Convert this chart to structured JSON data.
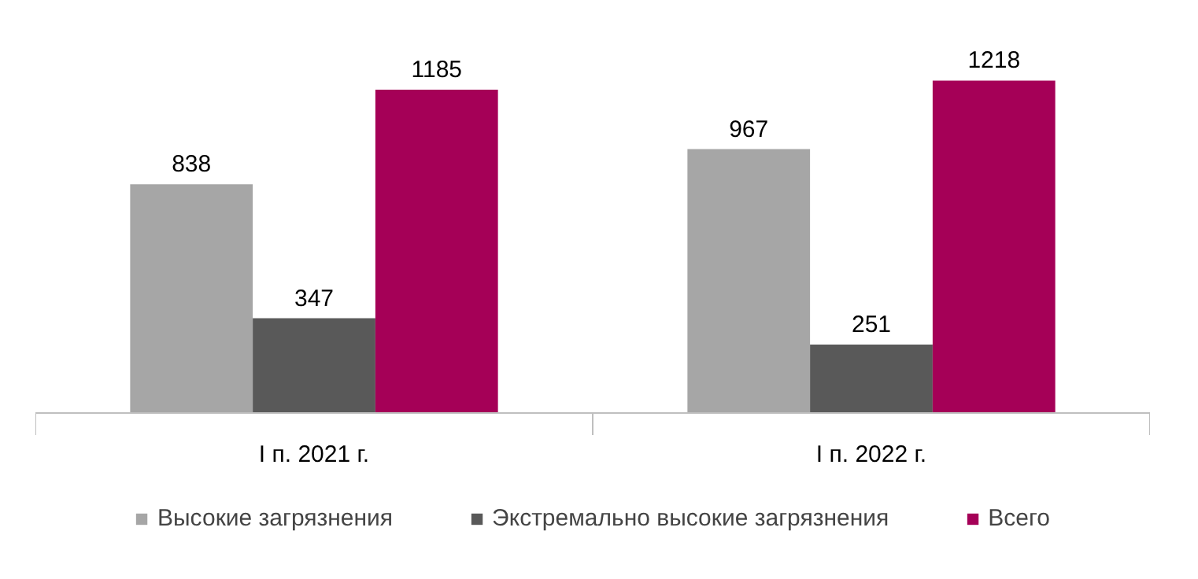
{
  "chart_data": {
    "type": "bar",
    "categories": [
      "I п. 2021 г.",
      "I п. 2022 г."
    ],
    "series": [
      {
        "name": "Высокие загрязнения",
        "color": "#a6a6a6",
        "values": [
          838,
          967
        ]
      },
      {
        "name": "Экстремально высокие загрязнения",
        "color": "#595959",
        "values": [
          347,
          251
        ]
      },
      {
        "name": "Всего",
        "color": "#a50057",
        "values": [
          1185,
          1218
        ]
      }
    ],
    "data_labels": true,
    "legend": "bottom"
  }
}
